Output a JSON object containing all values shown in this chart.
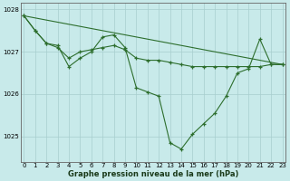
{
  "title": "Graphe pression niveau de la mer (hPa)",
  "bg_color": "#c8eaea",
  "line_color": "#2d6e2d",
  "grid_color": "#a8cece",
  "series": [
    {
      "name": "trend_line",
      "x": [
        0,
        23
      ],
      "y": [
        1027.85,
        1026.7
      ],
      "marker": false
    },
    {
      "name": "smooth_curve",
      "x": [
        0,
        1,
        2,
        3,
        4,
        5,
        6,
        7,
        8,
        9,
        10,
        11,
        12,
        13,
        14,
        15,
        16,
        17,
        18,
        19,
        20,
        21,
        22,
        23
      ],
      "y": [
        1027.85,
        1027.5,
        1027.2,
        1027.1,
        1026.85,
        1027.0,
        1027.05,
        1027.1,
        1027.15,
        1027.05,
        1026.85,
        1026.8,
        1026.8,
        1026.75,
        1026.7,
        1026.65,
        1026.65,
        1026.65,
        1026.65,
        1026.65,
        1026.65,
        1026.65,
        1026.7,
        1026.7
      ],
      "marker": true
    },
    {
      "name": "main_data",
      "x": [
        0,
        1,
        2,
        3,
        4,
        5,
        6,
        7,
        8,
        9,
        10,
        11,
        12,
        13,
        14,
        15,
        16,
        17,
        18,
        19,
        20,
        21,
        22,
        23
      ],
      "y": [
        1027.85,
        1027.5,
        1027.2,
        1027.15,
        1026.65,
        1026.85,
        1027.0,
        1027.35,
        1027.4,
        1027.1,
        1026.15,
        1026.05,
        1025.95,
        1024.85,
        1024.7,
        1025.05,
        1025.3,
        1025.55,
        1025.95,
        1026.5,
        1026.6,
        1027.3,
        1026.7,
        1026.7
      ],
      "marker": true
    }
  ],
  "yticks": [
    1025,
    1026,
    1027,
    1028
  ],
  "xticks": [
    0,
    1,
    2,
    3,
    4,
    5,
    6,
    7,
    8,
    9,
    10,
    11,
    12,
    13,
    14,
    15,
    16,
    17,
    18,
    19,
    20,
    21,
    22,
    23
  ],
  "ylim": [
    1024.4,
    1028.15
  ],
  "xlim": [
    -0.3,
    23.3
  ],
  "tick_fontsize": 5.0,
  "label_fontsize": 6.0
}
